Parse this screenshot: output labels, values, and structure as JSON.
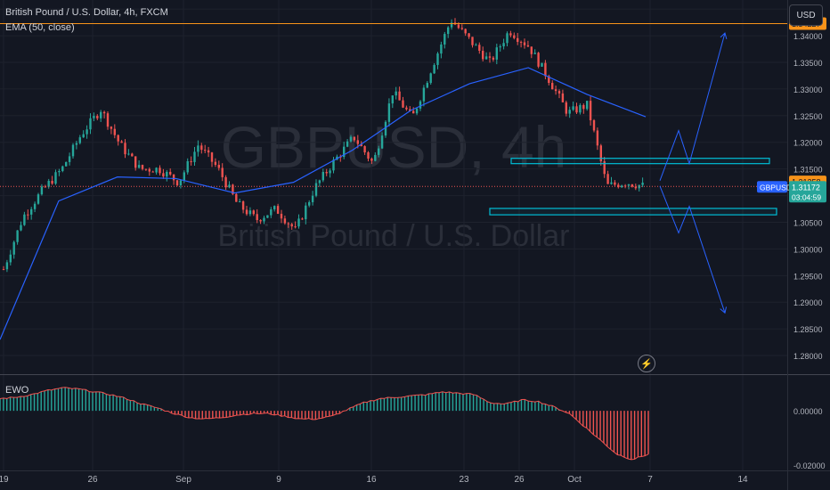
{
  "header": {
    "title": "British Pound / U.S. Dollar, 4h, FXCM",
    "ema_label": "EMA (50, close)",
    "currency": "USD"
  },
  "watermark": {
    "symbol": "GBPUSD, 4h",
    "name": "British Pound / U.S. Dollar"
  },
  "colors": {
    "background": "#131722",
    "up": "#26a69a",
    "down": "#ef5350",
    "ema": "#2962ff",
    "resistance": "#f7931a",
    "zone": "#00bcd4",
    "projection": "#2962ff",
    "ewo_line": "#ef5350"
  },
  "chart_data": [
    {
      "type": "candlestick",
      "title": "British Pound / U.S. Dollar, 4h, FXCM",
      "x_ticks": [
        "19",
        "26",
        "Sep",
        "9",
        "16",
        "23",
        "26",
        "Oct",
        "7",
        "14"
      ],
      "y_ticks": [
        "1.34500",
        "1.34000",
        "1.33500",
        "1.33000",
        "1.32500",
        "1.32000",
        "1.31500",
        "1.31000",
        "1.30500",
        "1.30000",
        "1.29500",
        "1.29000",
        "1.28500",
        "1.28000"
      ],
      "ylim": [
        1.2765,
        1.3467
      ],
      "price_labels": {
        "resistance": "1.34227",
        "reference": "1.31258",
        "symbol": "GBPUSD",
        "last": "1.31172",
        "countdown": "03:04:59"
      },
      "resistance_level": 1.34227,
      "reference_level": 1.31258,
      "last_price": 1.31172,
      "path_anchors": [
        [
          "19",
          1.2962
        ],
        [
          "21",
          1.306
        ],
        [
          "22",
          1.311
        ],
        [
          "24",
          1.315
        ],
        [
          "25",
          1.3215
        ],
        [
          "26",
          1.3262
        ],
        [
          "28",
          1.3195
        ],
        [
          "30",
          1.315
        ],
        [
          "Sep",
          1.315
        ],
        [
          "3",
          1.3125
        ],
        [
          "5",
          1.3195
        ],
        [
          "6",
          1.3152
        ],
        [
          "9",
          1.3085
        ],
        [
          "10",
          1.3055
        ],
        [
          "11",
          1.3075
        ],
        [
          "12",
          1.3035
        ],
        [
          "13",
          1.3115
        ],
        [
          "16",
          1.3165
        ],
        [
          "17",
          1.321
        ],
        [
          "18",
          1.316
        ],
        [
          "19",
          1.3295
        ],
        [
          "20",
          1.3245
        ],
        [
          "23",
          1.334
        ],
        [
          "24",
          1.343
        ],
        [
          "25",
          1.339
        ],
        [
          "26",
          1.335
        ],
        [
          "27",
          1.341
        ],
        [
          "30",
          1.338
        ],
        [
          "Oct",
          1.332
        ],
        [
          "2",
          1.3255
        ],
        [
          "3",
          1.327
        ],
        [
          "4",
          1.3118
        ],
        [
          "6",
          1.3125
        ],
        [
          "7",
          1.3117
        ]
      ],
      "ema": [
        [
          "19",
          1.283
        ],
        [
          "26",
          1.309
        ],
        [
          "Sep",
          1.3135
        ],
        [
          "9",
          1.3132
        ],
        [
          "12",
          1.3105
        ],
        [
          "16",
          1.3125
        ],
        [
          "19",
          1.3185
        ],
        [
          "23",
          1.326
        ],
        [
          "26",
          1.331
        ],
        [
          "Oct",
          1.334
        ],
        [
          "4",
          1.329
        ],
        [
          "7",
          1.3248
        ]
      ],
      "zones": [
        {
          "name": "upper-zone",
          "from": "25",
          "to": "13",
          "low": 1.316,
          "high": 1.317
        },
        {
          "name": "lower-zone",
          "from": "24",
          "to": "14",
          "low": 1.3064,
          "high": 1.3076
        }
      ],
      "projection_path": [
        [
          "7",
          1.3128
        ],
        [
          "9",
          1.3222
        ],
        [
          "10",
          1.316
        ],
        [
          "12",
          1.3405
        ]
      ],
      "projection_path_alt": [
        [
          "7",
          1.3118
        ],
        [
          "9",
          1.303
        ],
        [
          "10",
          1.308
        ],
        [
          "12",
          1.288
        ]
      ]
    },
    {
      "type": "histogram",
      "title": "EWO",
      "y_ticks": [
        "0.00000",
        "-0.02000"
      ],
      "ylim": [
        -0.022,
        0.0132
      ],
      "series": [
        {
          "values": [
            0.0045,
            0.005,
            0.006,
            0.0075,
            0.0085,
            0.008,
            0.007,
            0.006,
            0.0045,
            0.0025,
            0.001,
            -0.001,
            -0.0025,
            -0.003,
            -0.0025,
            -0.0015,
            -0.001,
            -0.001,
            -0.002,
            -0.003,
            -0.003,
            -0.002,
            0.0005,
            0.003,
            0.0045,
            0.005,
            0.0055,
            0.006,
            0.007,
            0.0065,
            0.006,
            0.003,
            0.0025,
            0.004,
            0.0035,
            0.0015,
            -0.001,
            -0.006,
            -0.011,
            -0.016,
            -0.018,
            -0.016
          ]
        }
      ]
    }
  ]
}
